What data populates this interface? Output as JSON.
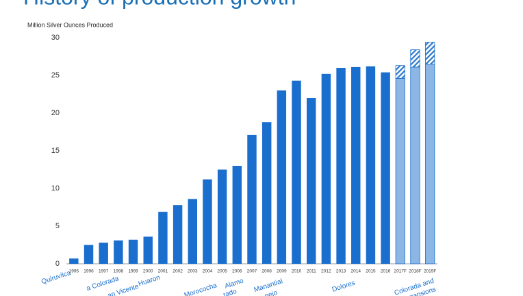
{
  "chart_data": {
    "type": "bar",
    "title": "History of production growth",
    "y_label": "Million Silver Ounces Produced",
    "categories": [
      "1995",
      "1996",
      "1997",
      "1998",
      "1999",
      "2000",
      "2001",
      "2002",
      "2003",
      "2004",
      "2005",
      "2006",
      "2007",
      "2008",
      "2009",
      "2010",
      "2011",
      "2012",
      "2013",
      "2014",
      "2015",
      "2016",
      "2017F",
      "2018F",
      "2019F"
    ],
    "series": [
      {
        "color": "#1a6fce",
        "values": [
          0.7,
          2.5,
          2.8,
          3.1,
          3.2,
          3.6,
          6.9,
          7.8,
          8.6,
          11.2,
          12.5,
          13.0,
          17.1,
          18.8,
          23.0,
          24.3,
          22.0,
          25.2,
          26.0,
          26.1,
          26.2,
          25.4,
          null,
          null,
          null
        ]
      },
      {
        "color": "#8cb6e4",
        "values": [
          null,
          null,
          null,
          null,
          null,
          null,
          null,
          null,
          null,
          null,
          null,
          null,
          null,
          null,
          null,
          null,
          null,
          null,
          null,
          null,
          null,
          null,
          24.6,
          26.1,
          26.5
        ]
      },
      {
        "color": "#2a78cc",
        "pattern": "hatch",
        "stacked_on": 1,
        "values": [
          null,
          null,
          null,
          null,
          null,
          null,
          null,
          null,
          null,
          null,
          null,
          null,
          null,
          null,
          null,
          null,
          null,
          null,
          null,
          null,
          null,
          null,
          1.7,
          2.3,
          2.9
        ]
      }
    ],
    "ylim": [
      0,
      30
    ],
    "yticks": [
      0,
      5,
      10,
      15,
      20,
      25,
      30
    ],
    "grid": false,
    "annotations": [
      "Quiruvilca",
      "a Colorada",
      "an Vicente",
      "Huaron",
      "Morococha",
      "Alamo",
      "rado",
      "Manantial",
      "pejo",
      "Dolores",
      "Colorada and",
      "Expansions"
    ],
    "annotation_color": "#1a6fce"
  }
}
